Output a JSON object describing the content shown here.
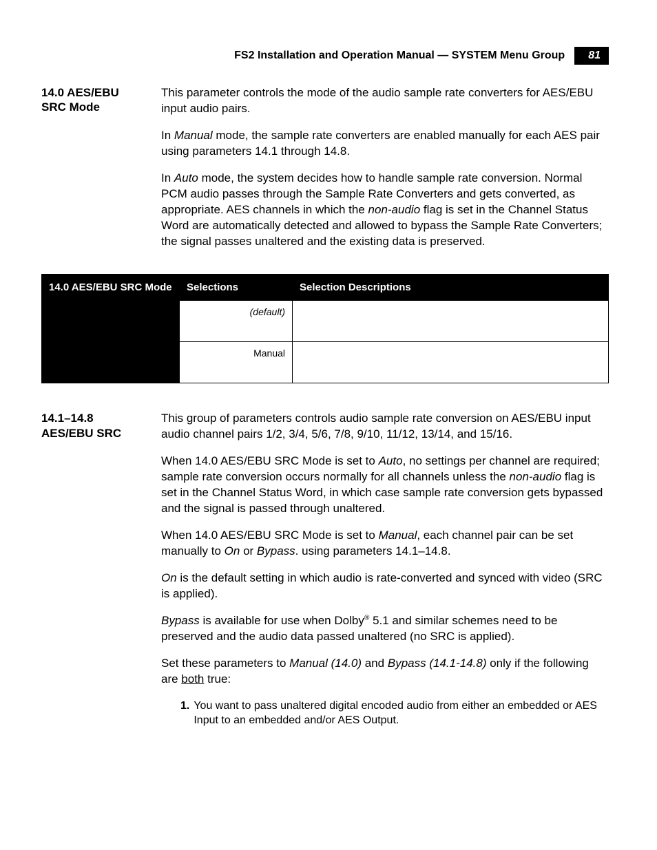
{
  "header": {
    "title": "FS2 Installation and Operation Manual — SYSTEM Menu Group",
    "page_num": "81"
  },
  "section1": {
    "heading": "14.0 AES/EBU SRC Mode",
    "p1a": "This parameter controls the mode of the audio sample rate converters for AES/EBU input audio pairs.",
    "p2a": "In ",
    "p2b": "Manual",
    "p2c": " mode, the sample rate converters are enabled manually for each AES pair using parameters 14.1 through 14.8.",
    "p3a": "In ",
    "p3b": "Auto",
    "p3c": " mode, the system decides how to handle sample rate conversion. Normal PCM audio passes through the Sample Rate Converters and gets converted, as appropriate. AES channels in which the ",
    "p3d": "non-audio",
    "p3e": " flag is set in the Channel Status Word are automatically detected and allowed to bypass the Sample Rate Converters; the signal passes unaltered and the existing data is preserved."
  },
  "table": {
    "header_col1": "14.0 AES/EBU SRC Mode",
    "header_col2": "Selections",
    "header_col3": "Selection Descriptions",
    "row1_sel": "(default)",
    "row2_sel": "Manual"
  },
  "section2": {
    "heading": "14.1–14.8 AES/EBU SRC",
    "p1": "This group of parameters controls audio sample rate conversion on AES/EBU input audio channel pairs 1/2, 3/4, 5/6, 7/8, 9/10, 11/12, 13/14, and 15/16.",
    "p2a": "When 14.0 AES/EBU SRC Mode is set to ",
    "p2b": "Auto",
    "p2c": ", no settings per channel are required; sample rate conversion occurs normally for all channels unless the ",
    "p2d": "non-audio",
    "p2e": " flag is set in the Channel Status Word, in which case sample rate conversion gets bypassed and the signal is passed through unaltered.",
    "p3a": "When 14.0 AES/EBU SRC Mode is set to ",
    "p3b": "Manual",
    "p3c": ", each channel pair can be set manually to ",
    "p3d": "On",
    "p3e": " or ",
    "p3f": "Bypass",
    "p3g": ". using parameters 14.1–14.8.",
    "p4a": "On",
    "p4b": " is the default setting in which audio is rate-converted and synced with video (SRC is applied).",
    "p5a": "Bypass",
    "p5b": " is available for use when Dolby",
    "p5sup": "®",
    "p5c": " 5.1 and similar schemes need to be preserved and the audio data passed unaltered (no SRC is applied).",
    "p6a": "Set these parameters to ",
    "p6b": "Manual (14.0)",
    "p6c": " and ",
    "p6d": "Bypass (14.1-14.8)",
    "p6e": " only if the following are ",
    "p6f": "both",
    "p6g": " true:",
    "li1_num": "1.",
    "li1": "You want to pass unaltered digital encoded audio from either an embedded or AES Input to an embedded and/or AES Output."
  }
}
